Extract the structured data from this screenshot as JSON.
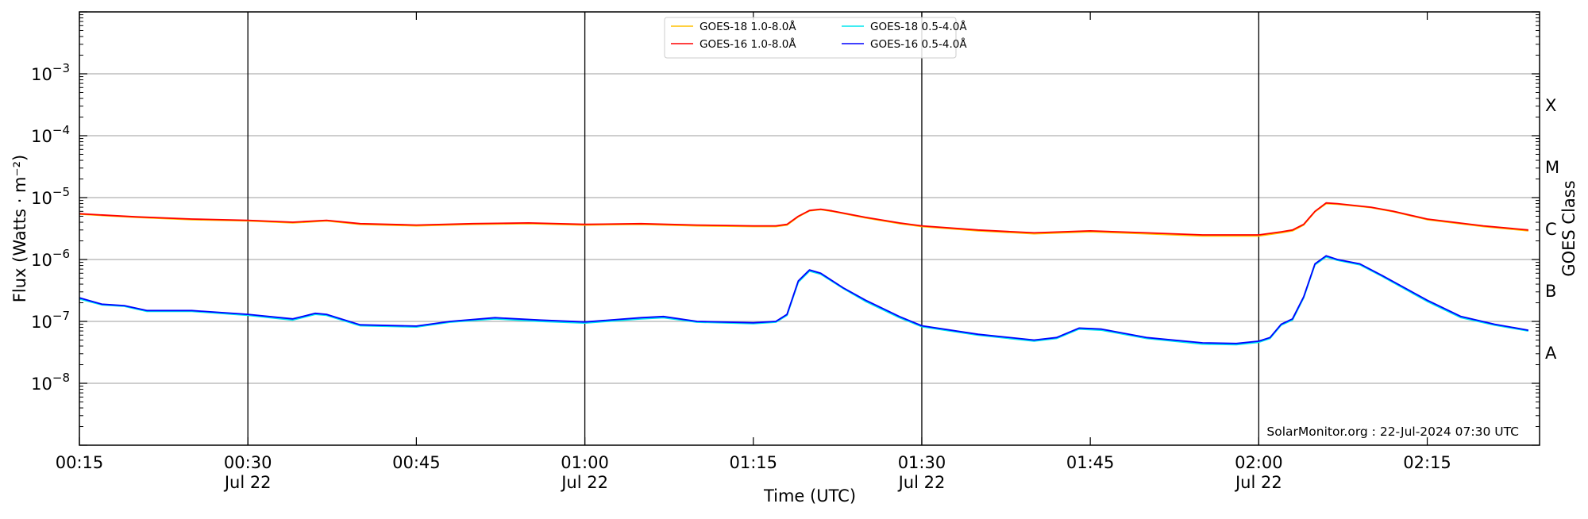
{
  "chart_data": {
    "type": "line",
    "title": "",
    "xlabel": "Time (UTC)",
    "ylabel": "Flux (Watts · m⁻²)",
    "right_ylabel": "GOES Class",
    "yscale": "log",
    "ylim": [
      1e-09,
      0.01
    ],
    "xlim_minutes_after_0015": [
      0,
      130
    ],
    "grid": "horizontal at decades",
    "legend_placement": "top-center",
    "y_ticks": [
      {
        "value": 1e-08,
        "base": "10",
        "exp": "−8"
      },
      {
        "value": 1e-07,
        "base": "10",
        "exp": "−7"
      },
      {
        "value": 1e-06,
        "base": "10",
        "exp": "−6"
      },
      {
        "value": 1e-05,
        "base": "10",
        "exp": "−5"
      },
      {
        "value": 0.0001,
        "base": "10",
        "exp": "−4"
      },
      {
        "value": 0.001,
        "base": "10",
        "exp": "−3"
      }
    ],
    "x_ticks": [
      {
        "t": 0,
        "label": "00:15",
        "sub": ""
      },
      {
        "t": 15,
        "label": "00:30",
        "sub": "Jul 22"
      },
      {
        "t": 30,
        "label": "00:45",
        "sub": ""
      },
      {
        "t": 45,
        "label": "01:00",
        "sub": "Jul 22"
      },
      {
        "t": 60,
        "label": "01:15",
        "sub": ""
      },
      {
        "t": 75,
        "label": "01:30",
        "sub": "Jul 22"
      },
      {
        "t": 90,
        "label": "01:45",
        "sub": ""
      },
      {
        "t": 105,
        "label": "02:00",
        "sub": "Jul 22"
      },
      {
        "t": 120,
        "label": "02:15",
        "sub": ""
      }
    ],
    "vertical_lines_t": [
      15,
      45,
      75,
      105
    ],
    "goes_classes": [
      {
        "label": "A",
        "log": -7.5
      },
      {
        "label": "B",
        "log": -6.5
      },
      {
        "label": "C",
        "log": -5.5
      },
      {
        "label": "M",
        "log": -4.5
      },
      {
        "label": "X",
        "log": -3.5
      }
    ],
    "annotation": "SolarMonitor.org : 22-Jul-2024 07:30 UTC",
    "series": [
      {
        "name": "GOES-18 1.0-8.0Å",
        "color": "#ffc000",
        "t": [
          0,
          5,
          10,
          15,
          19,
          22,
          25,
          30,
          35,
          40,
          45,
          50,
          55,
          60,
          62,
          63,
          64,
          65,
          66,
          67,
          70,
          73,
          75,
          80,
          85,
          90,
          95,
          100,
          105,
          107,
          108,
          109,
          110,
          111,
          112,
          115,
          117,
          120,
          125,
          129
        ],
        "values": [
          5.4e-06,
          4.8e-06,
          4.4e-06,
          4.2e-06,
          3.9e-06,
          4.2e-06,
          3.7e-06,
          3.5e-06,
          3.7e-06,
          3.8e-06,
          3.6e-06,
          3.7e-06,
          3.5e-06,
          3.4e-06,
          3.4e-06,
          3.6e-06,
          4.9e-06,
          6.1e-06,
          6.4e-06,
          6e-06,
          4.7e-06,
          3.8e-06,
          3.4e-06,
          2.9e-06,
          2.6e-06,
          2.8e-06,
          2.6e-06,
          2.4e-06,
          2.4e-06,
          2.7e-06,
          2.9e-06,
          3.6e-06,
          5.9e-06,
          8e-06,
          7.8e-06,
          6.9e-06,
          5.9e-06,
          4.4e-06,
          3.4e-06,
          2.9e-06
        ]
      },
      {
        "name": "GOES-16 1.0-8.0Å",
        "color": "#ff0000",
        "t": [
          0,
          5,
          10,
          15,
          19,
          22,
          25,
          30,
          35,
          40,
          45,
          50,
          55,
          60,
          62,
          63,
          64,
          65,
          66,
          67,
          70,
          73,
          75,
          80,
          85,
          90,
          95,
          100,
          105,
          107,
          108,
          109,
          110,
          111,
          112,
          115,
          117,
          120,
          125,
          129
        ],
        "values": [
          5.5e-06,
          4.9e-06,
          4.5e-06,
          4.3e-06,
          4e-06,
          4.3e-06,
          3.8e-06,
          3.6e-06,
          3.8e-06,
          3.9e-06,
          3.7e-06,
          3.8e-06,
          3.6e-06,
          3.5e-06,
          3.5e-06,
          3.7e-06,
          5e-06,
          6.2e-06,
          6.5e-06,
          6.1e-06,
          4.8e-06,
          3.9e-06,
          3.5e-06,
          3e-06,
          2.7e-06,
          2.9e-06,
          2.7e-06,
          2.5e-06,
          2.5e-06,
          2.8e-06,
          3e-06,
          3.7e-06,
          6e-06,
          8.2e-06,
          8e-06,
          7e-06,
          6e-06,
          4.5e-06,
          3.5e-06,
          3e-06
        ]
      },
      {
        "name": "GOES-18 0.5-4.0Å",
        "color": "#00e5ee",
        "t": [
          0,
          2,
          4,
          6,
          10,
          15,
          19,
          21,
          22,
          25,
          30,
          33,
          37,
          41,
          45,
          50,
          52,
          55,
          60,
          62,
          63,
          64,
          65,
          66,
          68,
          70,
          73,
          75,
          80,
          85,
          87,
          89,
          91,
          95,
          100,
          103,
          105,
          106,
          107,
          108,
          109,
          110,
          111,
          112,
          114,
          116,
          120,
          123,
          126,
          129
        ],
        "values": [
          2.3e-07,
          1.85e-07,
          1.75e-07,
          1.45e-07,
          1.45e-07,
          1.25e-07,
          1.05e-07,
          1.3e-07,
          1.25e-07,
          8.5e-08,
          8.1e-08,
          9.7e-08,
          1.1e-07,
          1e-07,
          9.4e-08,
          1.1e-07,
          1.15e-07,
          9.7e-08,
          9.2e-08,
          9.7e-08,
          1.25e-07,
          4.3e-07,
          6.5e-07,
          5.8e-07,
          3.4e-07,
          2.1e-07,
          1.15e-07,
          8.2e-08,
          6e-08,
          4.8e-08,
          5.3e-08,
          7.5e-08,
          7.2e-08,
          5.3e-08,
          4.3e-08,
          4.2e-08,
          4.6e-08,
          5.3e-08,
          8.7e-08,
          1.05e-07,
          2.4e-07,
          8.2e-07,
          1.1e-06,
          9.7e-07,
          8.2e-07,
          5.3e-07,
          2.1e-07,
          1.15e-07,
          8.7e-08,
          7e-08
        ]
      },
      {
        "name": "GOES-16 0.5-4.0Å",
        "color": "#0000ff",
        "t": [
          0,
          2,
          4,
          6,
          10,
          15,
          19,
          21,
          22,
          25,
          30,
          33,
          37,
          41,
          45,
          50,
          52,
          55,
          60,
          62,
          63,
          64,
          65,
          66,
          68,
          70,
          73,
          75,
          80,
          85,
          87,
          89,
          91,
          95,
          100,
          103,
          105,
          106,
          107,
          108,
          109,
          110,
          111,
          112,
          114,
          116,
          120,
          123,
          126,
          129
        ],
        "values": [
          2.4e-07,
          1.9e-07,
          1.8e-07,
          1.5e-07,
          1.5e-07,
          1.3e-07,
          1.1e-07,
          1.35e-07,
          1.3e-07,
          8.8e-08,
          8.4e-08,
          1e-07,
          1.15e-07,
          1.05e-07,
          9.8e-08,
          1.15e-07,
          1.2e-07,
          1e-07,
          9.5e-08,
          1e-07,
          1.3e-07,
          4.5e-07,
          6.8e-07,
          6e-07,
          3.5e-07,
          2.2e-07,
          1.2e-07,
          8.5e-08,
          6.2e-08,
          5e-08,
          5.5e-08,
          7.8e-08,
          7.5e-08,
          5.5e-08,
          4.5e-08,
          4.4e-08,
          4.8e-08,
          5.5e-08,
          9e-08,
          1.1e-07,
          2.5e-07,
          8.5e-07,
          1.15e-06,
          1e-06,
          8.5e-07,
          5.5e-07,
          2.2e-07,
          1.2e-07,
          9e-08,
          7.2e-08
        ]
      }
    ]
  }
}
